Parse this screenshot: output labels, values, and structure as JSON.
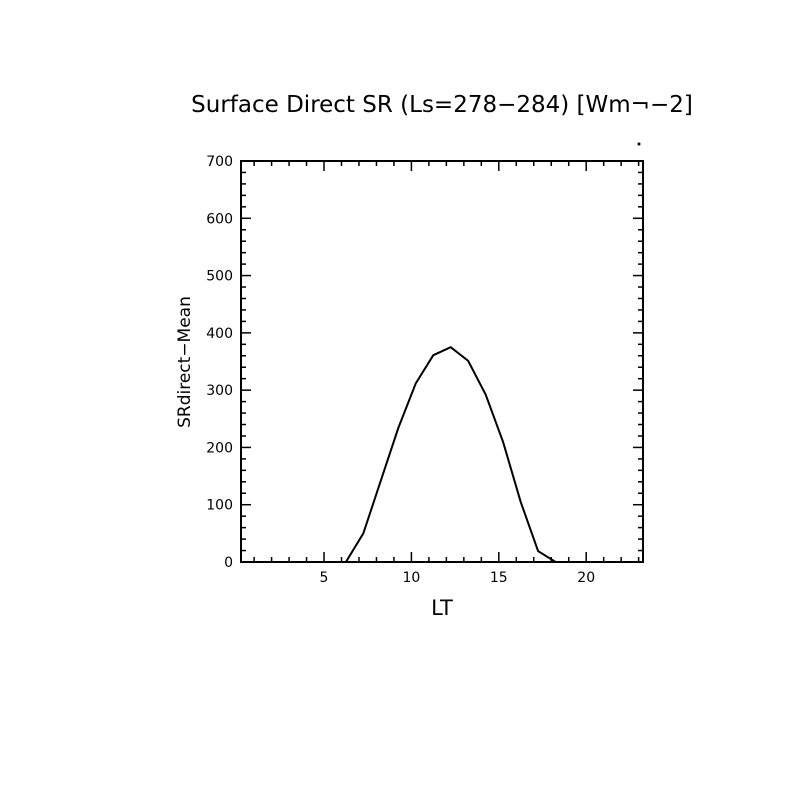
{
  "chart_data": {
    "type": "line",
    "title": "Surface Direct SR (Ls=278−284) [Wm¬−2]",
    "xlabel": "LT",
    "ylabel": "SRdirect−Mean",
    "xlim": [
      0.25,
      23.25
    ],
    "ylim": [
      0,
      700
    ],
    "xticks": [
      5,
      10,
      15,
      20
    ],
    "yticks": [
      0,
      100,
      200,
      300,
      400,
      500,
      600,
      700
    ],
    "x_minor_step": 1,
    "y_minor_step": 20,
    "grid": false,
    "line_color": "#000000",
    "series": [
      {
        "x": [
          0.25,
          1.25,
          2.25,
          3.25,
          4.25,
          5.25,
          6.25,
          7.25,
          8.25,
          9.25,
          10.25,
          11.25,
          12.25,
          13.25,
          14.25,
          15.25,
          16.25,
          17.25,
          18.25,
          19.25,
          20.25,
          21.25,
          22.25,
          23.25
        ],
        "values": [
          0,
          0,
          0,
          0,
          0,
          0,
          0,
          50,
          142,
          234,
          312,
          361,
          375,
          351,
          292,
          209,
          105,
          19,
          0,
          0,
          0,
          0,
          0,
          0
        ]
      }
    ]
  }
}
